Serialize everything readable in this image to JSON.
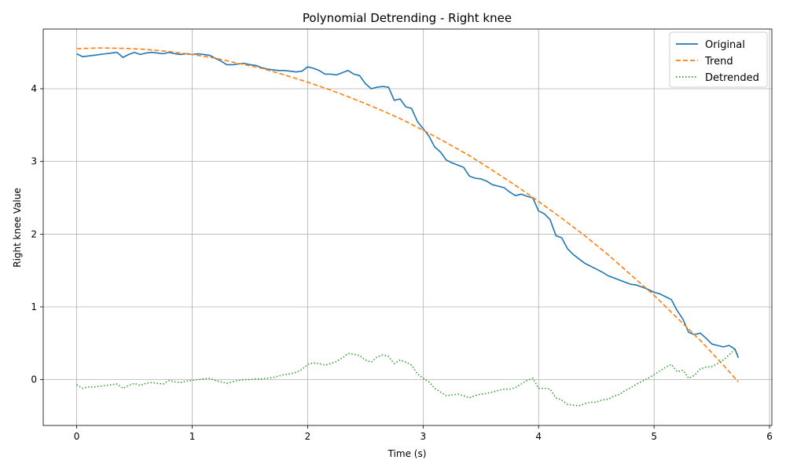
{
  "chart_data": {
    "type": "line",
    "title": "Polynomial Detrending - Right knee",
    "xlabel": "Time (s)",
    "ylabel": "Right knee Value",
    "xlim": [
      -0.29,
      6.02
    ],
    "ylim": [
      -0.63,
      4.82
    ],
    "xticks": [
      0,
      1,
      2,
      3,
      4,
      5,
      6
    ],
    "yticks": [
      0,
      1,
      2,
      3,
      4
    ],
    "grid": true,
    "legend_position": "top-right",
    "series": [
      {
        "name": "Original",
        "color": "#1f77b4",
        "style": "solid",
        "x": [
          0.0,
          0.05,
          0.1,
          0.15,
          0.2,
          0.25,
          0.3,
          0.35,
          0.4,
          0.45,
          0.5,
          0.55,
          0.6,
          0.65,
          0.7,
          0.75,
          0.8,
          0.85,
          0.9,
          0.95,
          1.0,
          1.05,
          1.1,
          1.15,
          1.2,
          1.25,
          1.3,
          1.35,
          1.4,
          1.45,
          1.5,
          1.55,
          1.6,
          1.65,
          1.7,
          1.75,
          1.8,
          1.85,
          1.9,
          1.95,
          2.0,
          2.05,
          2.1,
          2.15,
          2.2,
          2.25,
          2.3,
          2.35,
          2.4,
          2.45,
          2.5,
          2.55,
          2.6,
          2.65,
          2.7,
          2.75,
          2.8,
          2.85,
          2.9,
          2.95,
          3.0,
          3.05,
          3.1,
          3.15,
          3.2,
          3.25,
          3.3,
          3.35,
          3.4,
          3.45,
          3.5,
          3.55,
          3.6,
          3.65,
          3.7,
          3.75,
          3.8,
          3.85,
          3.9,
          3.95,
          4.0,
          4.05,
          4.1,
          4.15,
          4.2,
          4.25,
          4.3,
          4.35,
          4.4,
          4.45,
          4.5,
          4.55,
          4.6,
          4.65,
          4.7,
          4.75,
          4.8,
          4.85,
          4.9,
          4.95,
          5.0,
          5.05,
          5.1,
          5.15,
          5.2,
          5.25,
          5.3,
          5.35,
          5.4,
          5.45,
          5.5,
          5.55,
          5.6,
          5.65,
          5.7,
          5.73
        ],
        "y": [
          4.48,
          4.44,
          4.45,
          4.46,
          4.47,
          4.48,
          4.49,
          4.5,
          4.43,
          4.47,
          4.5,
          4.47,
          4.49,
          4.5,
          4.49,
          4.48,
          4.5,
          4.48,
          4.47,
          4.48,
          4.47,
          4.48,
          4.47,
          4.46,
          4.42,
          4.38,
          4.33,
          4.33,
          4.34,
          4.35,
          4.33,
          4.32,
          4.29,
          4.27,
          4.26,
          4.25,
          4.25,
          4.24,
          4.23,
          4.24,
          4.3,
          4.28,
          4.25,
          4.2,
          4.2,
          4.19,
          4.22,
          4.25,
          4.2,
          4.18,
          4.07,
          4.0,
          4.02,
          4.03,
          4.02,
          3.84,
          3.86,
          3.75,
          3.73,
          3.55,
          3.45,
          3.35,
          3.2,
          3.13,
          3.02,
          2.98,
          2.95,
          2.92,
          2.8,
          2.77,
          2.76,
          2.73,
          2.68,
          2.66,
          2.64,
          2.58,
          2.53,
          2.55,
          2.52,
          2.5,
          2.32,
          2.28,
          2.2,
          1.98,
          1.95,
          1.8,
          1.72,
          1.66,
          1.6,
          1.56,
          1.52,
          1.48,
          1.43,
          1.4,
          1.37,
          1.34,
          1.31,
          1.3,
          1.27,
          1.24,
          1.2,
          1.18,
          1.14,
          1.1,
          0.95,
          0.83,
          0.65,
          0.62,
          0.64,
          0.57,
          0.49,
          0.47,
          0.45,
          0.47,
          0.42,
          0.3
        ]
      },
      {
        "name": "Trend",
        "color": "#ff7f0e",
        "style": "dashed",
        "x": [
          0.0,
          0.2,
          0.4,
          0.6,
          0.8,
          1.0,
          1.2,
          1.4,
          1.6,
          1.8,
          2.0,
          2.2,
          2.4,
          2.6,
          2.8,
          3.0,
          3.2,
          3.4,
          3.6,
          3.8,
          4.0,
          4.2,
          4.4,
          4.6,
          4.8,
          5.0,
          5.2,
          5.4,
          5.6,
          5.73
        ],
        "y": [
          4.55,
          4.56,
          4.555,
          4.54,
          4.51,
          4.47,
          4.42,
          4.35,
          4.28,
          4.19,
          4.09,
          3.98,
          3.86,
          3.73,
          3.59,
          3.43,
          3.26,
          3.08,
          2.88,
          2.67,
          2.45,
          2.22,
          1.98,
          1.72,
          1.44,
          1.16,
          0.85,
          0.54,
          0.2,
          -0.03
        ]
      },
      {
        "name": "Detrended",
        "color": "#2ca02c",
        "style": "dotted",
        "x": [
          0.0,
          0.05,
          0.1,
          0.15,
          0.2,
          0.25,
          0.3,
          0.35,
          0.4,
          0.45,
          0.5,
          0.55,
          0.6,
          0.65,
          0.7,
          0.75,
          0.8,
          0.85,
          0.9,
          0.95,
          1.0,
          1.05,
          1.1,
          1.15,
          1.2,
          1.25,
          1.3,
          1.35,
          1.4,
          1.45,
          1.5,
          1.55,
          1.6,
          1.65,
          1.7,
          1.75,
          1.8,
          1.85,
          1.9,
          1.95,
          2.0,
          2.05,
          2.1,
          2.15,
          2.2,
          2.25,
          2.3,
          2.35,
          2.4,
          2.45,
          2.5,
          2.55,
          2.6,
          2.65,
          2.7,
          2.75,
          2.8,
          2.85,
          2.9,
          2.95,
          3.0,
          3.05,
          3.1,
          3.15,
          3.2,
          3.25,
          3.3,
          3.35,
          3.4,
          3.45,
          3.5,
          3.55,
          3.6,
          3.65,
          3.7,
          3.75,
          3.8,
          3.85,
          3.9,
          3.95,
          4.0,
          4.05,
          4.1,
          4.15,
          4.2,
          4.25,
          4.3,
          4.35,
          4.4,
          4.45,
          4.5,
          4.55,
          4.6,
          4.65,
          4.7,
          4.75,
          4.8,
          4.85,
          4.9,
          4.95,
          5.0,
          5.05,
          5.1,
          5.15,
          5.2,
          5.25,
          5.3,
          5.35,
          5.4,
          5.45,
          5.5,
          5.55,
          5.6,
          5.65,
          5.7,
          5.73
        ],
        "y": [
          -0.07,
          -0.12,
          -0.1,
          -0.1,
          -0.09,
          -0.08,
          -0.07,
          -0.06,
          -0.12,
          -0.08,
          -0.05,
          -0.08,
          -0.05,
          -0.04,
          -0.05,
          -0.06,
          -0.01,
          -0.03,
          -0.04,
          -0.02,
          -0.01,
          0.0,
          0.01,
          0.02,
          -0.01,
          -0.03,
          -0.05,
          -0.03,
          -0.01,
          0.0,
          0.0,
          0.01,
          0.01,
          0.02,
          0.03,
          0.05,
          0.07,
          0.08,
          0.1,
          0.14,
          0.21,
          0.23,
          0.22,
          0.2,
          0.22,
          0.25,
          0.3,
          0.36,
          0.35,
          0.33,
          0.27,
          0.24,
          0.31,
          0.34,
          0.32,
          0.22,
          0.27,
          0.24,
          0.2,
          0.08,
          0.02,
          -0.03,
          -0.12,
          -0.17,
          -0.22,
          -0.21,
          -0.2,
          -0.22,
          -0.25,
          -0.22,
          -0.2,
          -0.19,
          -0.17,
          -0.15,
          -0.13,
          -0.13,
          -0.11,
          -0.06,
          -0.01,
          0.02,
          -0.12,
          -0.12,
          -0.13,
          -0.25,
          -0.28,
          -0.34,
          -0.35,
          -0.36,
          -0.33,
          -0.31,
          -0.31,
          -0.28,
          -0.27,
          -0.23,
          -0.2,
          -0.15,
          -0.11,
          -0.06,
          -0.02,
          0.02,
          0.07,
          0.12,
          0.17,
          0.21,
          0.11,
          0.13,
          0.02,
          0.06,
          0.15,
          0.17,
          0.18,
          0.22,
          0.27,
          0.34,
          0.42,
          0.32
        ]
      }
    ]
  }
}
